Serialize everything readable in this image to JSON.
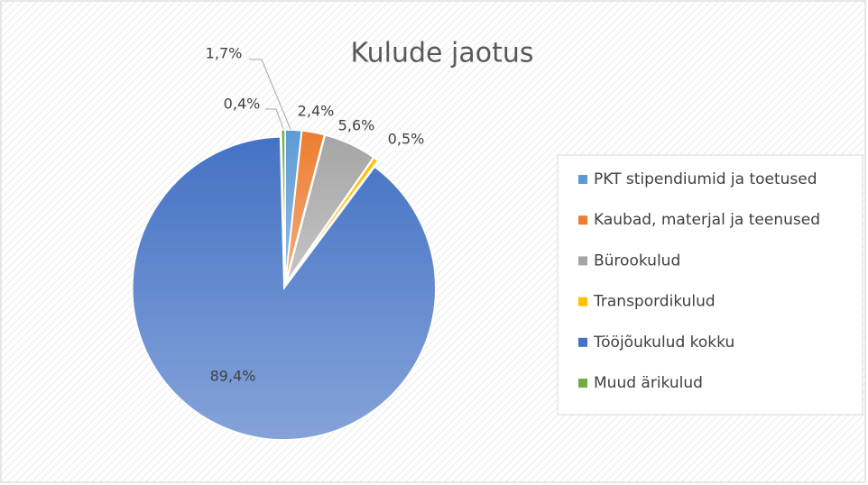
{
  "chart_data": {
    "type": "pie",
    "title": "Kulude jaotus",
    "categories": [
      "PKT stipendiumid ja toetused",
      "Kaubad, materjal ja teenused",
      "Bürookulud",
      "Transpordikulud",
      "Tööjõukulud kokku",
      "Muud ärikulud"
    ],
    "values": [
      1.7,
      2.4,
      5.6,
      0.5,
      89.4,
      0.4
    ],
    "value_labels": [
      "1,7%",
      "2,4%",
      "5,6%",
      "0,5%",
      "89,4%",
      "0,4%"
    ],
    "colors": [
      "#5b9bd5",
      "#ed7d31",
      "#a5a5a5",
      "#ffc000",
      "#4472c4",
      "#70ad47"
    ],
    "legend": "right"
  }
}
